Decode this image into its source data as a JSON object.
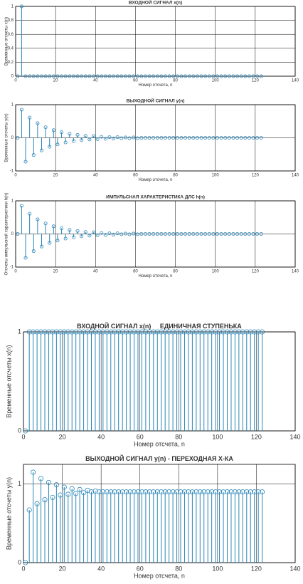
{
  "chart_data": [
    {
      "type": "stem",
      "title": "ВХОДНОЙ СИГНАЛ x(n)",
      "xlabel": "Номер отсчета, n",
      "ylabel": "Временные отсчеты x(n)",
      "color": "#2a86b8",
      "grid": true,
      "x": [
        1,
        3,
        5,
        7,
        9,
        11,
        13,
        15,
        17,
        19,
        21,
        23,
        25,
        27,
        29,
        31,
        33,
        35,
        37,
        39,
        41,
        43,
        45,
        47,
        49,
        51,
        53,
        55,
        57,
        59,
        61,
        63,
        65,
        67,
        69,
        71,
        73,
        75,
        77,
        79,
        81,
        83,
        85,
        87,
        89,
        91,
        93,
        95,
        97,
        99,
        101,
        103,
        105,
        107,
        109,
        111,
        113,
        115,
        117,
        119,
        121,
        123
      ],
      "values": [
        0,
        1,
        0,
        0,
        0,
        0,
        0,
        0,
        0,
        0,
        0,
        0,
        0,
        0,
        0,
        0,
        0,
        0,
        0,
        0,
        0,
        0,
        0,
        0,
        0,
        0,
        0,
        0,
        0,
        0,
        0,
        0,
        0,
        0,
        0,
        0,
        0,
        0,
        0,
        0,
        0,
        0,
        0,
        0,
        0,
        0,
        0,
        0,
        0,
        0,
        0,
        0,
        0,
        0,
        0,
        0,
        0,
        0,
        0,
        0,
        0,
        0
      ],
      "xlim": [
        0,
        140
      ],
      "xticks": [
        0,
        20,
        40,
        60,
        80,
        100,
        120,
        140
      ],
      "ylim": [
        0,
        1
      ],
      "yticks": [
        0,
        0.2,
        0.4,
        0.6,
        0.8,
        1
      ]
    },
    {
      "type": "stem",
      "title": "ВЫХОДНОЙ СИГНАЛ y(n)",
      "xlabel": "Номер отсчета, n",
      "ylabel": "Временные отсчеты y(n)",
      "color": "#2a86b8",
      "grid": true,
      "x": [
        1,
        3,
        5,
        7,
        9,
        11,
        13,
        15,
        17,
        19,
        21,
        23,
        25,
        27,
        29,
        31,
        33,
        35,
        37,
        39,
        41,
        43,
        45,
        47,
        49,
        51,
        53,
        55,
        57,
        59,
        61,
        63,
        65,
        67,
        69,
        71,
        73,
        75,
        77,
        79,
        81,
        83,
        85,
        87,
        89,
        91,
        93,
        95,
        97,
        99,
        101,
        103,
        105,
        107,
        109,
        111,
        113,
        115,
        117,
        119,
        121,
        123
      ],
      "values": [
        0,
        0.85,
        -0.72,
        0.61,
        -0.52,
        0.44,
        -0.38,
        0.32,
        -0.27,
        0.23,
        -0.2,
        0.17,
        -0.14,
        0.12,
        -0.1,
        0.09,
        -0.07,
        0.06,
        -0.05,
        0.05,
        -0.04,
        0.03,
        -0.03,
        0.02,
        -0.02,
        0.02,
        -0.01,
        0.01,
        -0.01,
        0.01,
        -0.01,
        0,
        0,
        0,
        0,
        0,
        0,
        0,
        0,
        0,
        0,
        0,
        0,
        0,
        0,
        0,
        0,
        0,
        0,
        0,
        0,
        0,
        0,
        0,
        0,
        0,
        0,
        0,
        0,
        0,
        0,
        0
      ],
      "xlim": [
        0,
        140
      ],
      "xticks": [
        0,
        20,
        40,
        60,
        80,
        100,
        120,
        140
      ],
      "ylim": [
        -1,
        1
      ],
      "yticks": [
        -1,
        0,
        1
      ]
    },
    {
      "type": "stem",
      "title": "ИМПУЛЬСНАЯ ХАРАКТЕРИСТИКА ДЛС h(n)",
      "xlabel": "Номер отсчета, n",
      "ylabel": "Отсчеты импульсной характеристики h(n)",
      "color": "#2a86b8",
      "grid": true,
      "x": [
        1,
        3,
        5,
        7,
        9,
        11,
        13,
        15,
        17,
        19,
        21,
        23,
        25,
        27,
        29,
        31,
        33,
        35,
        37,
        39,
        41,
        43,
        45,
        47,
        49,
        51,
        53,
        55,
        57,
        59,
        61,
        63,
        65,
        67,
        69,
        71,
        73,
        75,
        77,
        79,
        81,
        83,
        85,
        87,
        89,
        91,
        93,
        95,
        97,
        99,
        101,
        103,
        105,
        107,
        109,
        111,
        113,
        115,
        117,
        119,
        121,
        123
      ],
      "values": [
        0,
        0.85,
        -0.72,
        0.61,
        -0.52,
        0.44,
        -0.38,
        0.32,
        -0.27,
        0.23,
        -0.2,
        0.17,
        -0.14,
        0.12,
        -0.1,
        0.09,
        -0.07,
        0.06,
        -0.05,
        0.05,
        -0.04,
        0.03,
        -0.03,
        0.02,
        -0.02,
        0.02,
        -0.01,
        0.01,
        -0.01,
        0.01,
        -0.01,
        0,
        0,
        0,
        0,
        0,
        0,
        0,
        0,
        0,
        0,
        0,
        0,
        0,
        0,
        0,
        0,
        0,
        0,
        0,
        0,
        0,
        0,
        0,
        0,
        0,
        0,
        0,
        0,
        0,
        0,
        0
      ],
      "xlim": [
        0,
        140
      ],
      "xticks": [
        0,
        20,
        40,
        60,
        80,
        100,
        120,
        140
      ],
      "ylim": [
        -1,
        1
      ],
      "yticks": [
        -1,
        0,
        1
      ]
    },
    {
      "type": "stem",
      "title": "ВХОДНОЙ СИГНАЛ x(n)     ЕДИНИЧНАЯ СТУПЕНЬКА",
      "xlabel": "Номер отсчета, n",
      "ylabel": "Временные отсчеты x(n)",
      "color": "#2a86b8",
      "grid": true,
      "x": [
        1,
        3,
        5,
        7,
        9,
        11,
        13,
        15,
        17,
        19,
        21,
        23,
        25,
        27,
        29,
        31,
        33,
        35,
        37,
        39,
        41,
        43,
        45,
        47,
        49,
        51,
        53,
        55,
        57,
        59,
        61,
        63,
        65,
        67,
        69,
        71,
        73,
        75,
        77,
        79,
        81,
        83,
        85,
        87,
        89,
        91,
        93,
        95,
        97,
        99,
        101,
        103,
        105,
        107,
        109,
        111,
        113,
        115,
        117,
        119,
        121,
        123
      ],
      "values": [
        0,
        1,
        1,
        1,
        1,
        1,
        1,
        1,
        1,
        1,
        1,
        1,
        1,
        1,
        1,
        1,
        1,
        1,
        1,
        1,
        1,
        1,
        1,
        1,
        1,
        1,
        1,
        1,
        1,
        1,
        1,
        1,
        1,
        1,
        1,
        1,
        1,
        1,
        1,
        1,
        1,
        1,
        1,
        1,
        1,
        1,
        1,
        1,
        1,
        1,
        1,
        1,
        1,
        1,
        1,
        1,
        1,
        1,
        1,
        1,
        1,
        1
      ],
      "xlim": [
        0,
        140
      ],
      "xticks": [
        0,
        20,
        40,
        60,
        80,
        100,
        120,
        140
      ],
      "ylim": [
        0,
        1
      ],
      "yticks": [
        0,
        1
      ]
    },
    {
      "type": "stem",
      "title": "ВЫХОДНОЙ СИГНАЛ y(n) - ПЕРЕХОДНАЯ Х-КА",
      "xlabel": "Номер отсчета, n",
      "ylabel": "Временные отсчеты y(n)",
      "color": "#2a86b8",
      "grid": true,
      "x": [
        1,
        3,
        5,
        7,
        9,
        11,
        13,
        15,
        17,
        19,
        21,
        23,
        25,
        27,
        29,
        31,
        33,
        35,
        37,
        39,
        41,
        43,
        45,
        47,
        49,
        51,
        53,
        55,
        57,
        59,
        61,
        63,
        65,
        67,
        69,
        71,
        73,
        75,
        77,
        79,
        81,
        83,
        85,
        87,
        89,
        91,
        93,
        95,
        97,
        99,
        101,
        103,
        105,
        107,
        109,
        111,
        113,
        115,
        117,
        119,
        121,
        123
      ],
      "values": [
        0,
        0.67,
        1.15,
        0.75,
        1.07,
        0.8,
        1.02,
        0.83,
        0.99,
        0.86,
        0.96,
        0.87,
        0.94,
        0.88,
        0.93,
        0.89,
        0.92,
        0.9,
        0.91,
        0.9,
        0.9,
        0.9,
        0.9,
        0.9,
        0.9,
        0.9,
        0.9,
        0.9,
        0.9,
        0.9,
        0.9,
        0.9,
        0.9,
        0.9,
        0.9,
        0.9,
        0.9,
        0.9,
        0.9,
        0.9,
        0.9,
        0.9,
        0.9,
        0.9,
        0.9,
        0.9,
        0.9,
        0.9,
        0.9,
        0.9,
        0.9,
        0.9,
        0.9,
        0.9,
        0.9,
        0.9,
        0.9,
        0.9,
        0.9,
        0.9,
        0.9,
        0.9
      ],
      "xlim": [
        0,
        140
      ],
      "xticks": [
        0,
        20,
        40,
        60,
        80,
        100,
        120,
        140
      ],
      "ylim": [
        0,
        1.25
      ],
      "yticks": [
        0,
        1
      ]
    }
  ]
}
